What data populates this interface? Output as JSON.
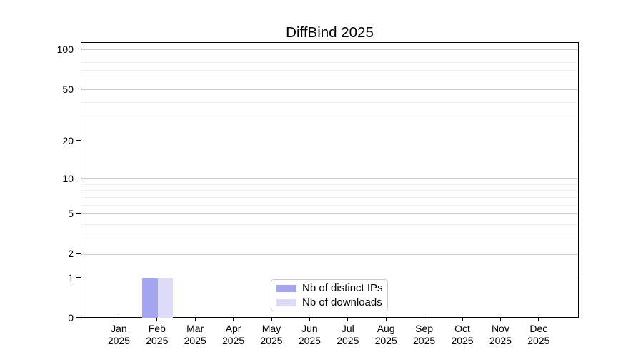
{
  "chart_data": {
    "type": "bar",
    "title": "DiffBind 2025",
    "categories": [
      "Jan",
      "Feb",
      "Mar",
      "Apr",
      "May",
      "Jun",
      "Jul",
      "Aug",
      "Sep",
      "Oct",
      "Nov",
      "Dec"
    ],
    "year_label": "2025",
    "series": [
      {
        "name": "Nb of distinct IPs",
        "color": "#a5a5f0",
        "values": [
          0,
          1,
          0,
          0,
          0,
          0,
          0,
          0,
          0,
          0,
          0,
          0
        ]
      },
      {
        "name": "Nb of downloads",
        "color": "#dcdcf8",
        "values": [
          0,
          1,
          0,
          0,
          0,
          0,
          0,
          0,
          0,
          0,
          0,
          0
        ]
      }
    ],
    "y_scale": "log10(value+1)",
    "y_tick_labels": [
      0,
      1,
      2,
      5,
      10,
      20,
      50,
      100
    ],
    "y_minor_gridlines": [
      3,
      4,
      6,
      7,
      8,
      9,
      30,
      40,
      60,
      70,
      80,
      90
    ],
    "ylim": [
      0,
      113
    ],
    "xlabel": "",
    "ylabel": "",
    "grid": "horizontal",
    "legend_position": "bottom-center"
  }
}
